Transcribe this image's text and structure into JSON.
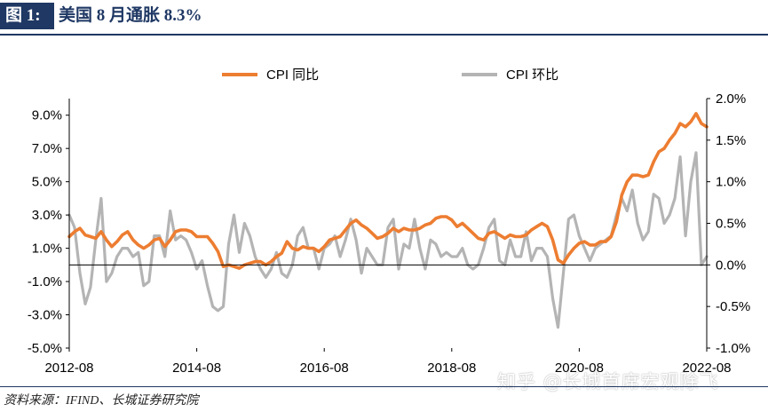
{
  "header": {
    "figure_label": "图 1:",
    "title": "美国 8 月通胀 8.3%"
  },
  "source": "资料来源：IFIND、长城证券研究院",
  "watermark": "知乎 @长城首席宏观除飞",
  "chart_data": {
    "type": "line",
    "x_tick_labels": [
      "2012-08",
      "2014-08",
      "2016-08",
      "2018-08",
      "2020-08",
      "2022-08"
    ],
    "left_axis": {
      "ylim": [
        -5.0,
        10.0
      ],
      "ticks": [
        "9.0%",
        "7.0%",
        "5.0%",
        "3.0%",
        "1.0%",
        "-1.0%",
        "-3.0%",
        "-5.0%"
      ]
    },
    "right_axis": {
      "ylim": [
        -1.0,
        2.0
      ],
      "ticks": [
        "2.0%",
        "1.5%",
        "1.0%",
        "0.5%",
        "0.0%",
        "-0.5%",
        "-1.0%"
      ]
    },
    "legend_position": "top-center",
    "x": [
      "2012-08",
      "2012-09",
      "2012-10",
      "2012-11",
      "2012-12",
      "2013-01",
      "2013-02",
      "2013-03",
      "2013-04",
      "2013-05",
      "2013-06",
      "2013-07",
      "2013-08",
      "2013-09",
      "2013-10",
      "2013-11",
      "2013-12",
      "2014-01",
      "2014-02",
      "2014-03",
      "2014-04",
      "2014-05",
      "2014-06",
      "2014-07",
      "2014-08",
      "2014-09",
      "2014-10",
      "2014-11",
      "2014-12",
      "2015-01",
      "2015-02",
      "2015-03",
      "2015-04",
      "2015-05",
      "2015-06",
      "2015-07",
      "2015-08",
      "2015-09",
      "2015-10",
      "2015-11",
      "2015-12",
      "2016-01",
      "2016-02",
      "2016-03",
      "2016-04",
      "2016-05",
      "2016-06",
      "2016-07",
      "2016-08",
      "2016-09",
      "2016-10",
      "2016-11",
      "2016-12",
      "2017-01",
      "2017-02",
      "2017-03",
      "2017-04",
      "2017-05",
      "2017-06",
      "2017-07",
      "2017-08",
      "2017-09",
      "2017-10",
      "2017-11",
      "2017-12",
      "2018-01",
      "2018-02",
      "2018-03",
      "2018-04",
      "2018-05",
      "2018-06",
      "2018-07",
      "2018-08",
      "2018-09",
      "2018-10",
      "2018-11",
      "2018-12",
      "2019-01",
      "2019-02",
      "2019-03",
      "2019-04",
      "2019-05",
      "2019-06",
      "2019-07",
      "2019-08",
      "2019-09",
      "2019-10",
      "2019-11",
      "2019-12",
      "2020-01",
      "2020-02",
      "2020-03",
      "2020-04",
      "2020-05",
      "2020-06",
      "2020-07",
      "2020-08",
      "2020-09",
      "2020-10",
      "2020-11",
      "2020-12",
      "2021-01",
      "2021-02",
      "2021-03",
      "2021-04",
      "2021-05",
      "2021-06",
      "2021-07",
      "2021-08",
      "2021-09",
      "2021-10",
      "2021-11",
      "2021-12",
      "2022-01",
      "2022-02",
      "2022-03",
      "2022-04",
      "2022-05",
      "2022-06",
      "2022-07",
      "2022-08"
    ],
    "series": [
      {
        "name": "CPI 同比",
        "axis": "left",
        "color": "#ed7d31",
        "values": [
          1.7,
          2.0,
          2.2,
          1.8,
          1.7,
          1.6,
          2.0,
          1.5,
          1.1,
          1.4,
          1.8,
          2.0,
          1.5,
          1.2,
          1.0,
          1.2,
          1.5,
          1.6,
          1.1,
          1.5,
          2.0,
          2.1,
          2.1,
          2.0,
          1.7,
          1.7,
          1.7,
          1.3,
          0.8,
          -0.1,
          0.0,
          -0.1,
          -0.2,
          0.0,
          0.1,
          0.2,
          0.2,
          0.0,
          0.2,
          0.5,
          0.7,
          1.4,
          1.0,
          0.9,
          1.1,
          1.0,
          1.0,
          0.8,
          1.1,
          1.5,
          1.6,
          1.7,
          2.1,
          2.5,
          2.7,
          2.4,
          2.2,
          1.9,
          1.6,
          1.7,
          1.9,
          2.2,
          2.0,
          2.2,
          2.1,
          2.1,
          2.2,
          2.4,
          2.5,
          2.8,
          2.9,
          2.9,
          2.7,
          2.3,
          2.5,
          2.2,
          1.9,
          1.6,
          1.5,
          1.9,
          2.0,
          1.8,
          1.6,
          1.8,
          1.7,
          1.7,
          1.8,
          2.1,
          2.3,
          2.5,
          2.3,
          1.5,
          0.3,
          0.1,
          0.6,
          1.0,
          1.3,
          1.4,
          1.2,
          1.2,
          1.4,
          1.4,
          1.7,
          2.6,
          4.2,
          5.0,
          5.4,
          5.4,
          5.3,
          5.4,
          6.2,
          6.8,
          7.0,
          7.5,
          7.9,
          8.5,
          8.3,
          8.6,
          9.1,
          8.5,
          8.3
        ]
      },
      {
        "name": "CPI 环比",
        "axis": "right",
        "color": "#b4b4b4",
        "values": [
          0.6,
          0.45,
          -0.1,
          -0.47,
          -0.27,
          0.3,
          0.8,
          -0.2,
          -0.1,
          0.1,
          0.2,
          0.2,
          0.1,
          0.15,
          -0.25,
          -0.2,
          0.35,
          0.35,
          0.1,
          0.65,
          0.3,
          0.35,
          0.3,
          0.15,
          -0.05,
          0.05,
          -0.25,
          -0.5,
          -0.55,
          -0.5,
          0.25,
          0.6,
          0.15,
          0.5,
          0.35,
          0.1,
          -0.05,
          -0.15,
          -0.05,
          0.15,
          -0.1,
          -0.15,
          0.0,
          0.35,
          0.45,
          0.2,
          0.2,
          -0.05,
          0.2,
          0.25,
          0.35,
          0.1,
          0.3,
          0.55,
          0.3,
          -0.1,
          0.2,
          0.1,
          0.0,
          0.0,
          0.45,
          0.55,
          -0.05,
          0.25,
          0.2,
          0.55,
          0.2,
          -0.05,
          0.3,
          0.25,
          0.1,
          0.15,
          0.1,
          0.1,
          0.2,
          0.0,
          -0.05,
          0.0,
          0.2,
          0.45,
          0.55,
          0.05,
          0.0,
          0.3,
          0.1,
          0.1,
          0.4,
          0.05,
          0.2,
          0.2,
          0.1,
          -0.4,
          -0.75,
          -0.1,
          0.55,
          0.6,
          0.35,
          0.2,
          0.05,
          0.2,
          0.25,
          0.3,
          0.35,
          0.6,
          0.8,
          0.65,
          0.9,
          0.5,
          0.3,
          0.4,
          0.85,
          0.8,
          0.5,
          0.6,
          0.8,
          1.3,
          0.35,
          1.0,
          1.35,
          0.0,
          0.1
        ]
      }
    ]
  }
}
